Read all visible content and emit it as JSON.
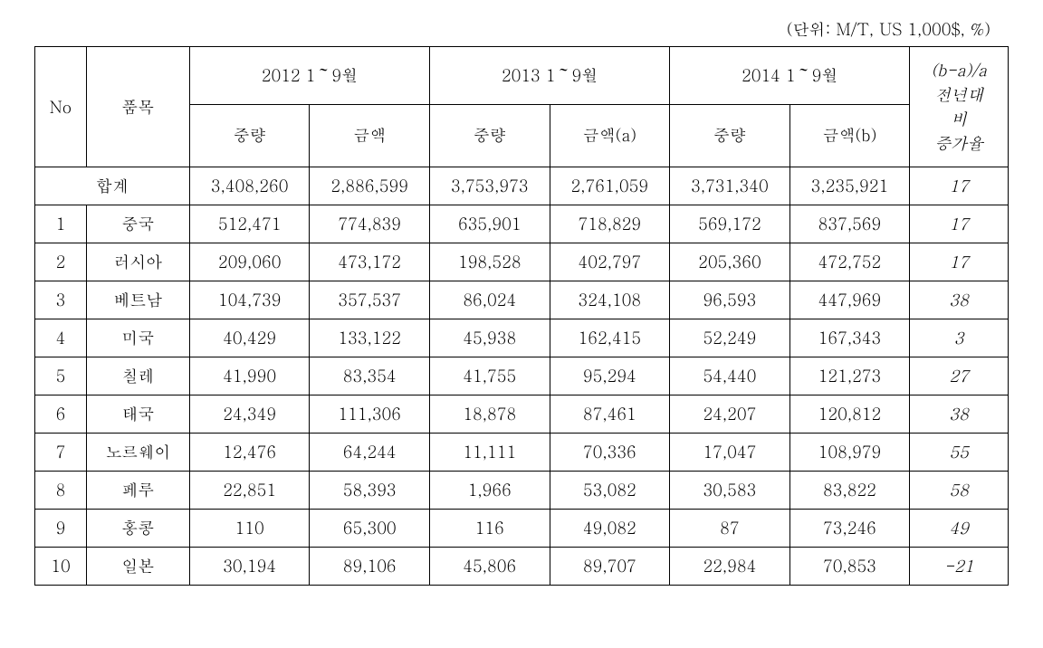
{
  "unit_label": "(단위: M/T, US 1,000$, %)",
  "header": {
    "no": "No",
    "item": "품목",
    "y2012": "2012 1～9월",
    "y2013": "2013 1～9월",
    "y2014": "2014 1～9월",
    "weight": "중량",
    "amount": "금액",
    "amount_a": "금액(a)",
    "amount_b": "금액(b)",
    "rate": "(b-a)/a\n전년대\n비\n증가율"
  },
  "total_label": "합계",
  "total": {
    "w2012": "3,408,260",
    "a2012": "2,886,599",
    "w2013": "3,753,973",
    "a2013": "2,761,059",
    "w2014": "3,731,340",
    "a2014": "3,235,921",
    "rate": "17"
  },
  "rows": [
    {
      "no": "1",
      "item": "중국",
      "w2012": "512,471",
      "a2012": "774,839",
      "w2013": "635,901",
      "a2013": "718,829",
      "w2014": "569,172",
      "a2014": "837,569",
      "rate": "17"
    },
    {
      "no": "2",
      "item": "러시아",
      "w2012": "209,060",
      "a2012": "473,172",
      "w2013": "198,528",
      "a2013": "402,797",
      "w2014": "205,360",
      "a2014": "472,752",
      "rate": "17"
    },
    {
      "no": "3",
      "item": "베트남",
      "w2012": "104,739",
      "a2012": "357,537",
      "w2013": "86,024",
      "a2013": "324,108",
      "w2014": "96,593",
      "a2014": "447,969",
      "rate": "38"
    },
    {
      "no": "4",
      "item": "미국",
      "w2012": "40,429",
      "a2012": "133,122",
      "w2013": "45,938",
      "a2013": "162,415",
      "w2014": "52,249",
      "a2014": "167,343",
      "rate": "3"
    },
    {
      "no": "5",
      "item": "칠레",
      "w2012": "41,990",
      "a2012": "83,354",
      "w2013": "41,755",
      "a2013": "95,294",
      "w2014": "54,440",
      "a2014": "121,273",
      "rate": "27"
    },
    {
      "no": "6",
      "item": "태국",
      "w2012": "24,349",
      "a2012": "111,306",
      "w2013": "18,878",
      "a2013": "87,461",
      "w2014": "24,207",
      "a2014": "120,812",
      "rate": "38"
    },
    {
      "no": "7",
      "item": "노르웨이",
      "w2012": "12,476",
      "a2012": "64,244",
      "w2013": "11,111",
      "a2013": "70,336",
      "w2014": "17,047",
      "a2014": "108,979",
      "rate": "55"
    },
    {
      "no": "8",
      "item": "페루",
      "w2012": "22,851",
      "a2012": "58,393",
      "w2013": "1,966",
      "a2013": "53,082",
      "w2014": "30,583",
      "a2014": "83,822",
      "rate": "58"
    },
    {
      "no": "9",
      "item": "홍콩",
      "w2012": "110",
      "a2012": "65,300",
      "w2013": "116",
      "a2013": "49,082",
      "w2014": "87",
      "a2014": "73,246",
      "rate": "49"
    },
    {
      "no": "10",
      "item": "일본",
      "w2012": "30,194",
      "a2012": "89,106",
      "w2013": "45,806",
      "a2013": "89,707",
      "w2014": "22,984",
      "a2014": "70,853",
      "rate": "-21"
    }
  ],
  "styling": {
    "border_color": "#000000",
    "background_color": "#ffffff",
    "font_family": "Batang serif",
    "font_size_pt": 14,
    "italic_columns": [
      "rate"
    ]
  }
}
